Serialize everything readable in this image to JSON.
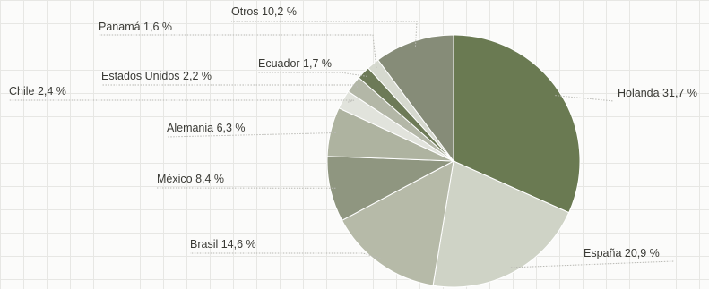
{
  "chart_data": {
    "type": "pie",
    "start_angle_deg": 0,
    "direction": "clockwise",
    "slices": [
      {
        "label": "Holanda 31,7 %",
        "value": 31.7,
        "color": "#6a7a52"
      },
      {
        "label": "España 20,9 %",
        "value": 20.9,
        "color": "#cfd3c6"
      },
      {
        "label": "Brasil 14,6 %",
        "value": 14.6,
        "color": "#b6baa8"
      },
      {
        "label": "México 8,4 %",
        "value": 8.4,
        "color": "#8f9680"
      },
      {
        "label": "Alemania 6,3 %",
        "value": 6.3,
        "color": "#aeb3a0"
      },
      {
        "label": "Chile 2,4 %",
        "value": 2.4,
        "color": "#e1e3dc"
      },
      {
        "label": "Estados Unidos 2,2 %",
        "value": 2.2,
        "color": "#b3b7a7"
      },
      {
        "label": "Ecuador 1,7 %",
        "value": 1.7,
        "color": "#6d7a57"
      },
      {
        "label": "Panamá 1,6 %",
        "value": 1.6,
        "color": "#d6d9cf"
      },
      {
        "label": "Otros 10,2 %",
        "value": 10.2,
        "color": "#868c78"
      }
    ]
  }
}
